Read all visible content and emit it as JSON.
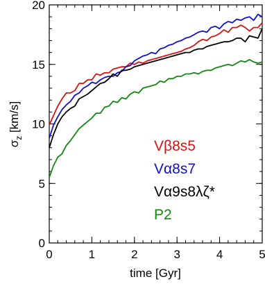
{
  "chart_data": {
    "type": "line",
    "title": "",
    "xlabel": "time [Gyr]",
    "ylabel": "σ",
    "ylabel_sub": "z",
    "ylabel_unit": " [km/s]",
    "xlim": [
      0,
      5
    ],
    "ylim": [
      0,
      20
    ],
    "x_ticks": [
      0,
      1,
      2,
      3,
      4,
      5
    ],
    "y_ticks": [
      0,
      5,
      10,
      15,
      20
    ],
    "grid": false,
    "legend_placement": "lower-right",
    "series": [
      {
        "name": "Vβ8s5",
        "color": "#dd1111",
        "points": [
          [
            0,
            9.9
          ],
          [
            0.1,
            10.7
          ],
          [
            0.2,
            11.5
          ],
          [
            0.3,
            12.1
          ],
          [
            0.4,
            12.6
          ],
          [
            0.5,
            12.6
          ],
          [
            0.6,
            12.8
          ],
          [
            0.7,
            13.4
          ],
          [
            0.8,
            13.4
          ],
          [
            0.9,
            13.7
          ],
          [
            1.0,
            13.7
          ],
          [
            1.1,
            14.2
          ],
          [
            1.2,
            14.1
          ],
          [
            1.3,
            14.3
          ],
          [
            1.4,
            14.3
          ],
          [
            1.5,
            14.6
          ],
          [
            1.6,
            14.7
          ],
          [
            1.7,
            14.8
          ],
          [
            1.8,
            14.8
          ],
          [
            1.9,
            15.1
          ],
          [
            2.0,
            15.0
          ],
          [
            2.1,
            15.2
          ],
          [
            2.2,
            15.1
          ],
          [
            2.3,
            15.3
          ],
          [
            2.4,
            15.4
          ],
          [
            2.5,
            15.5
          ],
          [
            2.6,
            15.6
          ],
          [
            2.7,
            15.7
          ],
          [
            2.8,
            15.8
          ],
          [
            2.9,
            15.9
          ],
          [
            3.0,
            16.0
          ],
          [
            3.1,
            16.1
          ],
          [
            3.2,
            16.3
          ],
          [
            3.3,
            16.4
          ],
          [
            3.4,
            16.6
          ],
          [
            3.5,
            16.9
          ],
          [
            3.6,
            17.1
          ],
          [
            3.7,
            17.0
          ],
          [
            3.8,
            17.3
          ],
          [
            3.9,
            17.4
          ],
          [
            4.0,
            17.6
          ],
          [
            4.1,
            17.9
          ],
          [
            4.2,
            17.7
          ],
          [
            4.3,
            18.1
          ],
          [
            4.4,
            18.1
          ],
          [
            4.5,
            18.3
          ],
          [
            4.6,
            18.1
          ],
          [
            4.7,
            17.8
          ],
          [
            4.8,
            18.1
          ],
          [
            4.9,
            18.1
          ],
          [
            5.0,
            18.5
          ]
        ]
      },
      {
        "name": "Vα8s7",
        "color": "#1111cc",
        "points": [
          [
            0,
            8.8
          ],
          [
            0.1,
            9.9
          ],
          [
            0.2,
            10.6
          ],
          [
            0.3,
            11.2
          ],
          [
            0.4,
            11.6
          ],
          [
            0.5,
            11.9
          ],
          [
            0.6,
            12.4
          ],
          [
            0.7,
            12.6
          ],
          [
            0.8,
            13.0
          ],
          [
            0.9,
            13.2
          ],
          [
            1.0,
            13.5
          ],
          [
            1.1,
            13.4
          ],
          [
            1.2,
            13.7
          ],
          [
            1.3,
            13.9
          ],
          [
            1.4,
            14.0
          ],
          [
            1.5,
            14.0
          ],
          [
            1.6,
            14.3
          ],
          [
            1.7,
            14.4
          ],
          [
            1.8,
            14.8
          ],
          [
            1.9,
            14.9
          ],
          [
            2.0,
            15.3
          ],
          [
            2.1,
            15.5
          ],
          [
            2.2,
            15.7
          ],
          [
            2.3,
            15.8
          ],
          [
            2.4,
            16.0
          ],
          [
            2.5,
            15.9
          ],
          [
            2.6,
            16.3
          ],
          [
            2.7,
            16.4
          ],
          [
            2.8,
            16.6
          ],
          [
            2.9,
            16.7
          ],
          [
            3.0,
            16.9
          ],
          [
            3.1,
            17.0
          ],
          [
            3.2,
            17.2
          ],
          [
            3.3,
            17.3
          ],
          [
            3.4,
            17.5
          ],
          [
            3.5,
            17.7
          ],
          [
            3.6,
            17.8
          ],
          [
            3.7,
            17.7
          ],
          [
            3.8,
            18.1
          ],
          [
            3.9,
            18.2
          ],
          [
            4.0,
            18.0
          ],
          [
            4.1,
            18.4
          ],
          [
            4.2,
            18.6
          ],
          [
            4.3,
            18.5
          ],
          [
            4.4,
            18.8
          ],
          [
            4.5,
            18.7
          ],
          [
            4.6,
            18.9
          ],
          [
            4.7,
            19.0
          ],
          [
            4.8,
            18.7
          ],
          [
            4.9,
            19.2
          ],
          [
            5.0,
            19.0
          ]
        ]
      },
      {
        "name": "Vα9s8λζ*",
        "color": "#000000",
        "points": [
          [
            0,
            8.0
          ],
          [
            0.1,
            9.1
          ],
          [
            0.2,
            10.0
          ],
          [
            0.3,
            10.6
          ],
          [
            0.4,
            11.0
          ],
          [
            0.5,
            11.3
          ],
          [
            0.6,
            11.5
          ],
          [
            0.7,
            12.1
          ],
          [
            0.8,
            12.3
          ],
          [
            0.9,
            12.5
          ],
          [
            1.0,
            12.8
          ],
          [
            1.1,
            13.1
          ],
          [
            1.2,
            13.4
          ],
          [
            1.3,
            13.5
          ],
          [
            1.4,
            13.8
          ],
          [
            1.5,
            14.2
          ],
          [
            1.6,
            14.0
          ],
          [
            1.7,
            14.5
          ],
          [
            1.8,
            14.5
          ],
          [
            1.9,
            14.6
          ],
          [
            2.0,
            14.8
          ],
          [
            2.1,
            14.9
          ],
          [
            2.2,
            15.0
          ],
          [
            2.3,
            15.1
          ],
          [
            2.4,
            15.2
          ],
          [
            2.5,
            15.3
          ],
          [
            2.6,
            15.4
          ],
          [
            2.7,
            15.5
          ],
          [
            2.8,
            15.6
          ],
          [
            2.9,
            15.7
          ],
          [
            3.0,
            15.8
          ],
          [
            3.1,
            15.9
          ],
          [
            3.2,
            16.0
          ],
          [
            3.3,
            16.0
          ],
          [
            3.4,
            16.2
          ],
          [
            3.5,
            16.3
          ],
          [
            3.6,
            16.3
          ],
          [
            3.7,
            16.5
          ],
          [
            3.8,
            16.6
          ],
          [
            3.9,
            16.7
          ],
          [
            4.0,
            16.8
          ],
          [
            4.1,
            16.9
          ],
          [
            4.2,
            16.9
          ],
          [
            4.3,
            17.0
          ],
          [
            4.4,
            17.2
          ],
          [
            4.5,
            17.2
          ],
          [
            4.6,
            16.9
          ],
          [
            4.7,
            17.4
          ],
          [
            4.8,
            17.3
          ],
          [
            4.9,
            17.2
          ],
          [
            5.0,
            18.0
          ]
        ]
      },
      {
        "name": "P2",
        "color": "#118811",
        "points": [
          [
            0,
            5.5
          ],
          [
            0.1,
            6.5
          ],
          [
            0.2,
            7.2
          ],
          [
            0.3,
            7.5
          ],
          [
            0.4,
            8.2
          ],
          [
            0.5,
            8.6
          ],
          [
            0.6,
            9.1
          ],
          [
            0.7,
            9.6
          ],
          [
            0.8,
            9.9
          ],
          [
            0.9,
            10.2
          ],
          [
            1.0,
            10.5
          ],
          [
            1.1,
            10.9
          ],
          [
            1.2,
            10.9
          ],
          [
            1.3,
            11.4
          ],
          [
            1.4,
            11.5
          ],
          [
            1.5,
            11.9
          ],
          [
            1.6,
            11.8
          ],
          [
            1.7,
            12.2
          ],
          [
            1.8,
            12.1
          ],
          [
            1.9,
            12.5
          ],
          [
            2.0,
            12.7
          ],
          [
            2.1,
            12.6
          ],
          [
            2.2,
            13.0
          ],
          [
            2.3,
            13.1
          ],
          [
            2.4,
            13.2
          ],
          [
            2.5,
            13.3
          ],
          [
            2.6,
            13.6
          ],
          [
            2.7,
            13.5
          ],
          [
            2.8,
            13.8
          ],
          [
            2.9,
            13.8
          ],
          [
            3.0,
            14.0
          ],
          [
            3.1,
            14.0
          ],
          [
            3.2,
            14.2
          ],
          [
            3.3,
            14.2
          ],
          [
            3.4,
            14.3
          ],
          [
            3.5,
            14.2
          ],
          [
            3.6,
            14.4
          ],
          [
            3.7,
            14.5
          ],
          [
            3.8,
            14.5
          ],
          [
            3.9,
            14.7
          ],
          [
            4.0,
            14.8
          ],
          [
            4.1,
            14.9
          ],
          [
            4.2,
            15.0
          ],
          [
            4.3,
            14.9
          ],
          [
            4.4,
            15.1
          ],
          [
            4.5,
            15.3
          ],
          [
            4.6,
            15.2
          ],
          [
            4.7,
            15.4
          ],
          [
            4.8,
            15.2
          ],
          [
            4.9,
            15.1
          ],
          [
            5.0,
            15.2
          ]
        ]
      }
    ]
  }
}
